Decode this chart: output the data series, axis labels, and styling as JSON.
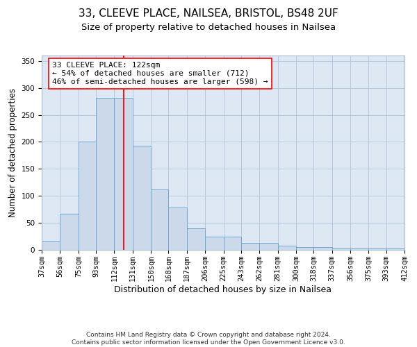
{
  "title_line1": "33, CLEEVE PLACE, NAILSEA, BRISTOL, BS48 2UF",
  "title_line2": "Size of property relative to detached houses in Nailsea",
  "xlabel": "Distribution of detached houses by size in Nailsea",
  "ylabel": "Number of detached properties",
  "bar_color": "#ccd9ea",
  "bar_edge_color": "#6fa8d0",
  "grid_color": "#b8c8de",
  "background_color": "#dde8f4",
  "bins": [
    37,
    56,
    75,
    93,
    112,
    131,
    150,
    168,
    187,
    206,
    225,
    243,
    262,
    281,
    300,
    318,
    337,
    356,
    375,
    393,
    412
  ],
  "values": [
    17,
    67,
    200,
    281,
    281,
    193,
    112,
    79,
    40,
    25,
    25,
    13,
    13,
    8,
    5,
    5,
    3,
    2,
    2,
    3
  ],
  "red_line_x": 122,
  "ylim": [
    0,
    360
  ],
  "yticks": [
    0,
    50,
    100,
    150,
    200,
    250,
    300,
    350
  ],
  "annotation_text": "33 CLEEVE PLACE: 122sqm\n← 54% of detached houses are smaller (712)\n46% of semi-detached houses are larger (598) →",
  "footnote": "Contains HM Land Registry data © Crown copyright and database right 2024.\nContains public sector information licensed under the Open Government Licence v3.0.",
  "title_fontsize": 11,
  "subtitle_fontsize": 9.5,
  "xlabel_fontsize": 9,
  "ylabel_fontsize": 8.5,
  "tick_fontsize": 7.5,
  "annotation_fontsize": 8,
  "footnote_fontsize": 6.5
}
